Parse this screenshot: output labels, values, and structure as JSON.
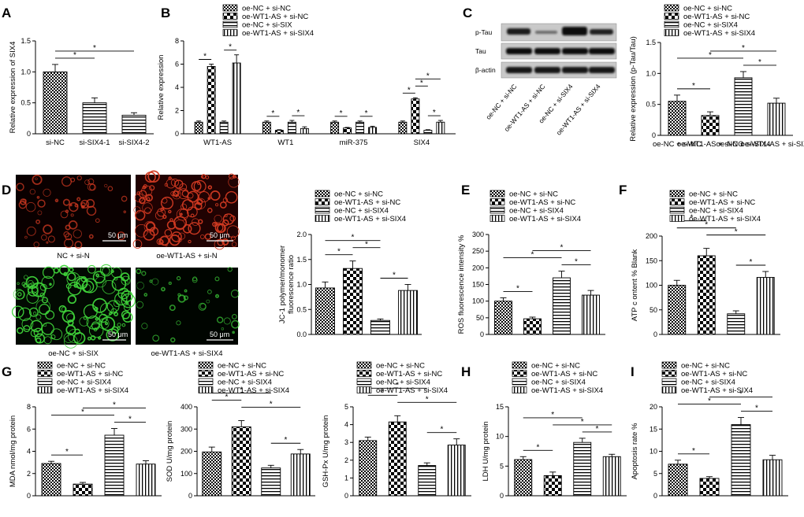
{
  "panel_letters": [
    "A",
    "B",
    "C",
    "D",
    "E",
    "F",
    "G",
    "H",
    "I"
  ],
  "colors": {
    "red_stain": "#d23a22",
    "green_stain": "#3fd43a",
    "dark": "#000000"
  },
  "patterns": [
    "dots",
    "checker",
    "hlines",
    "vlines"
  ],
  "blot": {
    "rows": [
      "p-Tau",
      "Tau",
      "β-actin"
    ],
    "lanes": [
      "oe-NC + si-NC",
      "oe-WT1-AS + si-NC",
      "oe-NC + si-SIX4",
      "oe-WT1-AS + si-SIX4"
    ]
  },
  "micrographs": {
    "labels": [
      "NC + si-N",
      "oe-WT1-AS + si-N",
      "oe-NC + si-SIX",
      "oe-WT1-AS + si-SIX4"
    ],
    "scale_bar": "50 μm"
  },
  "chart_data": [
    {
      "id": "A",
      "type": "bar",
      "categories": [
        "si-NC",
        "si-SIX4-1",
        "si-SIX4-2"
      ],
      "values": [
        1.0,
        0.5,
        0.3
      ],
      "errors": [
        0.12,
        0.08,
        0.04
      ],
      "patterns": [
        "dots",
        "hlines",
        "hlines"
      ],
      "ylabel": "Relative expression of SIX4",
      "ylim": [
        0,
        1.5
      ],
      "yticks": [
        0,
        0.5,
        1.0,
        1.5
      ],
      "legend": [],
      "sig": [
        {
          "from": 0,
          "to": 1,
          "level": 1,
          "text": "*"
        },
        {
          "from": 0,
          "to": 2,
          "level": 2,
          "text": "*"
        }
      ]
    },
    {
      "id": "B",
      "type": "bar",
      "categories": [
        "WT1-AS",
        "WT1",
        "miR-375",
        "SIX4"
      ],
      "series": [
        {
          "name": "oe-NC + si-NC",
          "values": [
            1.0,
            1.0,
            1.0,
            1.0
          ],
          "errors": [
            0.1,
            0.1,
            0.1,
            0.1
          ]
        },
        {
          "name": "oe-WT1-AS + si-NC",
          "values": [
            5.8,
            0.3,
            0.5,
            3.0
          ],
          "errors": [
            0.2,
            0.05,
            0.05,
            0.1
          ]
        },
        {
          "name": "oe-NC + si-SIX",
          "values": [
            1.0,
            1.0,
            1.0,
            0.3
          ],
          "errors": [
            0.1,
            0.15,
            0.1,
            0.05
          ]
        },
        {
          "name": "oe-WT1-AS + si-SIX4",
          "values": [
            6.1,
            0.45,
            0.55,
            1.0
          ],
          "errors": [
            0.7,
            0.15,
            0.1,
            0.15
          ]
        }
      ],
      "patterns": [
        "dots",
        "checker",
        "hlines",
        "vlines"
      ],
      "ylabel": "Relative expression",
      "ylim": [
        0,
        8
      ],
      "yticks": [
        0,
        2,
        4,
        6,
        8
      ],
      "sig": [
        {
          "group": 0,
          "from": 0,
          "to": 1,
          "level": 1,
          "text": "*"
        },
        {
          "group": 0,
          "from": 2,
          "to": 3,
          "level": 1,
          "text": "*"
        },
        {
          "group": 1,
          "from": 0,
          "to": 1,
          "level": 1,
          "text": "*"
        },
        {
          "group": 1,
          "from": 2,
          "to": 3,
          "level": 1,
          "text": "*"
        },
        {
          "group": 2,
          "from": 0,
          "to": 1,
          "level": 1,
          "text": "*"
        },
        {
          "group": 2,
          "from": 2,
          "to": 3,
          "level": 1,
          "text": "*"
        },
        {
          "group": 3,
          "from": 0,
          "to": 1,
          "level": 1,
          "text": "*"
        },
        {
          "group": 3,
          "from": 1,
          "to": 2,
          "level": 2,
          "text": "*"
        },
        {
          "group": 3,
          "from": 1,
          "to": 3,
          "level": 3,
          "text": "*"
        },
        {
          "group": 3,
          "from": 2,
          "to": 3,
          "level": 1,
          "text": "*"
        }
      ]
    },
    {
      "id": "C",
      "type": "bar",
      "categories": [
        "oe-NC + si-NC",
        "oe-WT1-AS + si-NC",
        "oe-NC + si-SIX4",
        "oe-WT1-AS + si-SIX4"
      ],
      "values": [
        0.55,
        0.32,
        0.93,
        0.52
      ],
      "errors": [
        0.1,
        0.06,
        0.1,
        0.08
      ],
      "patterns": [
        "dots",
        "checker",
        "hlines",
        "vlines"
      ],
      "ylabel": "Relative expression (p-Tau/Tau)",
      "ylim": [
        0,
        1.5
      ],
      "yticks": [
        0,
        0.5,
        1.0,
        1.5
      ],
      "legend": [
        "oe-NC + si-NC",
        "oe-WT1-AS + si-NC",
        "oe-NC + si-SIX4",
        "oe-WT1-AS + si-SIX4"
      ],
      "sig": [
        {
          "from": 0,
          "to": 1,
          "level": 1,
          "text": "*"
        },
        {
          "from": 0,
          "to": 2,
          "level": 2,
          "text": "*"
        },
        {
          "from": 2,
          "to": 3,
          "level": 1,
          "text": "*"
        },
        {
          "from": 1,
          "to": 3,
          "level": 3,
          "text": "*"
        }
      ]
    },
    {
      "id": "D",
      "type": "bar",
      "categories": [
        "",
        "",
        "",
        ""
      ],
      "values": [
        0.93,
        1.32,
        0.28,
        0.88
      ],
      "errors": [
        0.12,
        0.15,
        0.03,
        0.12
      ],
      "patterns": [
        "dots",
        "checker",
        "hlines",
        "vlines"
      ],
      "ylabel": "JC-1 polymer/monomer fluorescence ratio",
      "ylim": [
        0,
        2.0
      ],
      "yticks": [
        0.0,
        0.5,
        1.0,
        1.5,
        2.0
      ],
      "legend": [
        "oe-NC + si-NC",
        "oe-WT1-AS + si-NC",
        "oe-NC + si-SIX4",
        "oe-WT1-AS + si-SIX4"
      ],
      "sig": [
        {
          "from": 0,
          "to": 1,
          "level": 1,
          "text": "*"
        },
        {
          "from": 2,
          "to": 3,
          "level": 1,
          "text": "*"
        },
        {
          "from": 1,
          "to": 2,
          "level": 2,
          "text": "*"
        },
        {
          "from": 0,
          "to": 2,
          "level": 3,
          "text": "*"
        }
      ]
    },
    {
      "id": "E",
      "type": "bar",
      "categories": [
        "",
        "",
        "",
        ""
      ],
      "values": [
        100,
        47,
        170,
        118
      ],
      "errors": [
        10,
        5,
        20,
        14
      ],
      "patterns": [
        "dots",
        "checker",
        "hlines",
        "vlines"
      ],
      "ylabel": "ROS fluorescence intensity %",
      "ylim": [
        0,
        300
      ],
      "yticks": [
        0,
        50,
        100,
        150,
        200,
        250,
        300
      ],
      "legend": [
        "oe-NC + si-NC",
        "oe-WT1-AS + si-NC",
        "oe-NC + si-SIX4",
        "oe-WT1-AS + si-SIX4"
      ],
      "sig": [
        {
          "from": 0,
          "to": 1,
          "level": 1,
          "text": "*"
        },
        {
          "from": 2,
          "to": 3,
          "level": 1,
          "text": "*"
        },
        {
          "from": 0,
          "to": 2,
          "level": 2,
          "text": "*"
        },
        {
          "from": 1,
          "to": 3,
          "level": 3,
          "text": "*"
        }
      ]
    },
    {
      "id": "F",
      "type": "bar",
      "categories": [
        "",
        "",
        "",
        ""
      ],
      "values": [
        100,
        160,
        42,
        116
      ],
      "errors": [
        10,
        15,
        6,
        12
      ],
      "patterns": [
        "dots",
        "checker",
        "hlines",
        "vlines"
      ],
      "ylabel": "ATP c ontent % Blank",
      "ylim": [
        0,
        200
      ],
      "yticks": [
        0,
        50,
        100,
        150,
        200
      ],
      "legend": [
        "oe-NC + si-NC",
        "oe-WT1-AS + si-NC",
        "oe-NC + si-SIX4",
        "oe-WT1-AS + si-SIX4"
      ],
      "sig": [
        {
          "from": 2,
          "to": 3,
          "level": 1,
          "text": "*"
        },
        {
          "from": 1,
          "to": 3,
          "level": 2,
          "text": "*"
        },
        {
          "from": 0,
          "to": 2,
          "level": 3,
          "text": "*"
        },
        {
          "from": 0,
          "to": 1,
          "level": 4,
          "text": "*"
        }
      ]
    },
    {
      "id": "G1",
      "type": "bar",
      "categories": [
        "",
        "",
        "",
        ""
      ],
      "values": [
        2.9,
        1.05,
        5.45,
        2.85
      ],
      "errors": [
        0.2,
        0.15,
        0.6,
        0.3
      ],
      "patterns": [
        "dots",
        "checker",
        "hlines",
        "vlines"
      ],
      "ylabel": "MDA nmol/mg protein",
      "ylim": [
        0,
        8
      ],
      "yticks": [
        0,
        2,
        4,
        6,
        8
      ],
      "legend": [
        "oe-NC + si-NC",
        "oe-WT1-AS + si-NC",
        "oe-NC + si-SIX4",
        "oe-WT1-AS + si-SIX4"
      ],
      "sig": [
        {
          "from": 0,
          "to": 1,
          "level": 1,
          "text": "*"
        },
        {
          "from": 2,
          "to": 3,
          "level": 1,
          "text": "*"
        },
        {
          "from": 0,
          "to": 2,
          "level": 2,
          "text": "*"
        },
        {
          "from": 1,
          "to": 3,
          "level": 3,
          "text": "*"
        }
      ]
    },
    {
      "id": "G2",
      "type": "bar",
      "categories": [
        "",
        "",
        "",
        ""
      ],
      "values": [
        197,
        310,
        125,
        188
      ],
      "errors": [
        22,
        28,
        12,
        20
      ],
      "patterns": [
        "dots",
        "checker",
        "hlines",
        "vlines"
      ],
      "ylabel": "SOD U/mg protein",
      "ylim": [
        0,
        400
      ],
      "yticks": [
        0,
        100,
        200,
        300,
        400
      ],
      "legend": [
        "oe-NC + si-NC",
        "oe-WT1-AS + si-NC",
        "oe-NC + si-SIX4",
        "oe-WT1-AS + si-SIX4"
      ],
      "sig": [
        {
          "from": 2,
          "to": 3,
          "level": 1,
          "text": "*"
        },
        {
          "from": 1,
          "to": 3,
          "level": 2,
          "text": "*"
        },
        {
          "from": 0,
          "to": 1,
          "level": 3,
          "text": "*"
        },
        {
          "from": 0,
          "to": 2,
          "level": 4,
          "text": "*"
        }
      ]
    },
    {
      "id": "G3",
      "type": "bar",
      "categories": [
        "",
        "",
        "",
        ""
      ],
      "values": [
        3.1,
        4.15,
        1.7,
        2.85
      ],
      "errors": [
        0.2,
        0.35,
        0.15,
        0.35
      ],
      "patterns": [
        "dots",
        "checker",
        "hlines",
        "vlines"
      ],
      "ylabel": "GSH-Px U/mg protein",
      "ylim": [
        0,
        5
      ],
      "yticks": [
        0,
        1,
        2,
        3,
        4,
        5
      ],
      "legend": [
        "oe-NC + si-NC",
        "oe-WT1-AS + si-NC",
        "oe-NC + si-SIX4",
        "oe-WT1-AS + si-SIX4"
      ],
      "sig": [
        {
          "from": 2,
          "to": 3,
          "level": 1,
          "text": "*"
        },
        {
          "from": 1,
          "to": 3,
          "level": 2,
          "text": "*"
        },
        {
          "from": 0,
          "to": 1,
          "level": 3,
          "text": "*"
        },
        {
          "from": 0,
          "to": 2,
          "level": 4,
          "text": "*"
        }
      ]
    },
    {
      "id": "H",
      "type": "bar",
      "categories": [
        "",
        "",
        "",
        ""
      ],
      "values": [
        6.1,
        3.4,
        9.0,
        6.6
      ],
      "errors": [
        0.5,
        0.6,
        0.7,
        0.4
      ],
      "patterns": [
        "dots",
        "checker",
        "hlines",
        "vlines"
      ],
      "ylabel": "LDH U/mg protein",
      "ylim": [
        0,
        15
      ],
      "yticks": [
        0,
        5,
        10,
        15
      ],
      "legend": [
        "oe-NC + si-NC",
        "oe-WT1-AS + si-NC",
        "oe-NC + si-SIX4",
        "oe-WT1-AS + si-SIX4"
      ],
      "sig": [
        {
          "from": 0,
          "to": 1,
          "level": 1,
          "text": "*"
        },
        {
          "from": 2,
          "to": 3,
          "level": 1,
          "text": "*"
        },
        {
          "from": 1,
          "to": 3,
          "level": 2,
          "text": "*"
        },
        {
          "from": 0,
          "to": 2,
          "level": 3,
          "text": "*"
        }
      ]
    },
    {
      "id": "I",
      "type": "bar",
      "categories": [
        "",
        "",
        "",
        ""
      ],
      "values": [
        7.1,
        3.9,
        16.0,
        8.1
      ],
      "errors": [
        0.9,
        0.4,
        1.6,
        1.0
      ],
      "patterns": [
        "dots",
        "checker",
        "hlines",
        "vlines"
      ],
      "ylabel": "Apoptosis rate %",
      "ylim": [
        0,
        20
      ],
      "yticks": [
        0,
        5,
        10,
        15,
        20
      ],
      "legend": [
        "oe-NC + si-NC",
        "oe-WT1-AS + si-NC",
        "oe-NC + si-SIX4",
        "oe-WT1-AS + si-SIX4"
      ],
      "sig": [
        {
          "from": 0,
          "to": 1,
          "level": 1,
          "text": "*"
        },
        {
          "from": 2,
          "to": 3,
          "level": 1,
          "text": "*"
        },
        {
          "from": 0,
          "to": 2,
          "level": 2,
          "text": "*"
        },
        {
          "from": 1,
          "to": 3,
          "level": 3,
          "text": "*"
        }
      ]
    }
  ]
}
